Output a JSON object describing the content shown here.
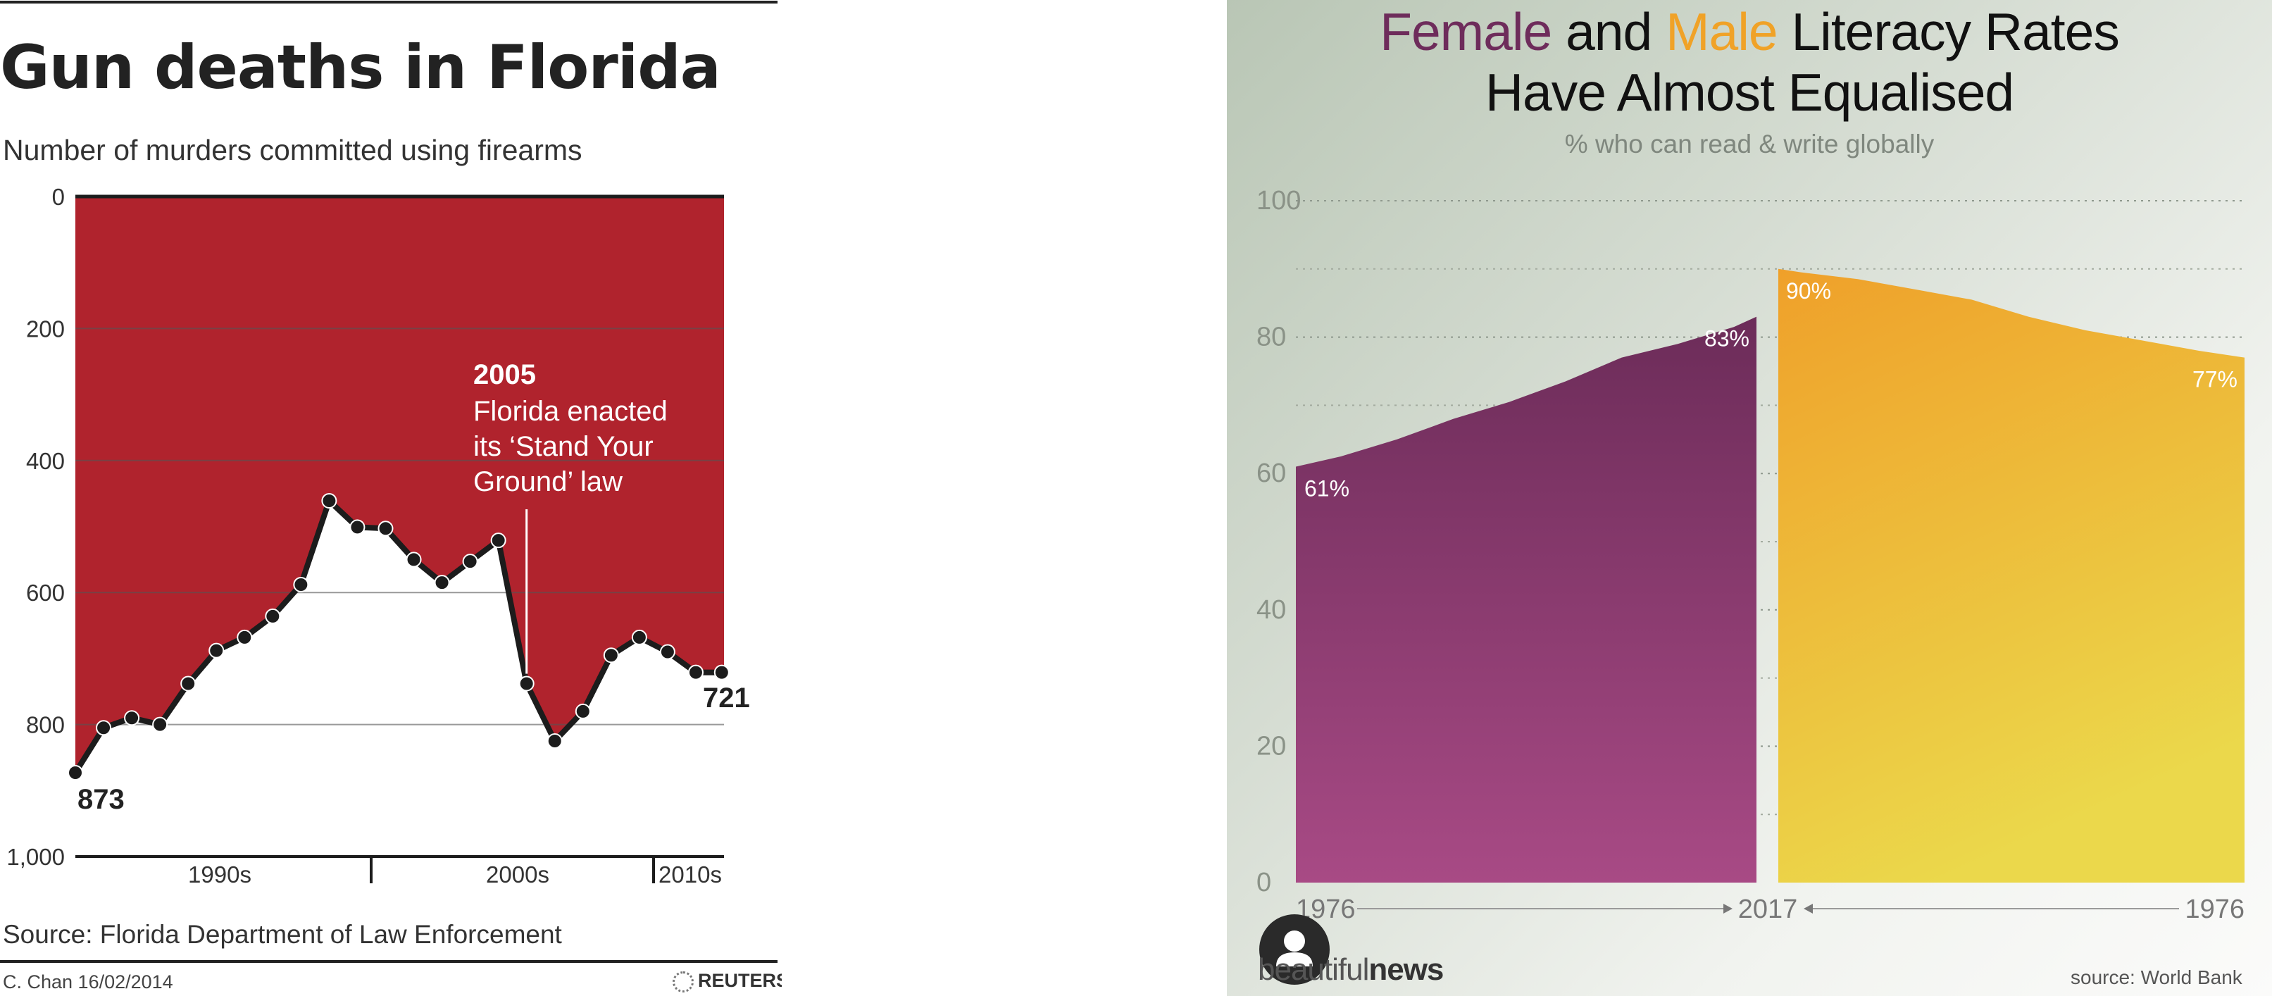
{
  "left_chart": {
    "title": "Gun deaths in Florida",
    "subtitle": "Number of murders committed using firearms",
    "source": "Source: Florida Department of Law Enforcement",
    "credit": "C. Chan  16/02/2014",
    "logo_text": "REUTERS",
    "annotation": {
      "year": "2005",
      "lines": [
        "Florida enacted",
        "its ‘Stand Your",
        "Ground’ law"
      ]
    },
    "start_label": "873",
    "end_label": "721",
    "colors": {
      "fill": "#b0232d",
      "line": "#1c1c1c",
      "text": "#222222"
    }
  },
  "right_chart": {
    "title_parts": {
      "female": "Female",
      "and": " and ",
      "male": "Male",
      "rest": " Literacy Rates",
      "line2": "Have Almost Equalised"
    },
    "subtitle": "% who can read & write globally",
    "brand": {
      "light": "beautiful",
      "bold": "news"
    },
    "source": "source: World Bank",
    "female_start_label": "61%",
    "female_end_label": "83%",
    "male_end_label": "90%",
    "male_start_label": "77%",
    "x_left_start": "1976",
    "x_middle": "2017",
    "x_right_start": "1976",
    "colors": {
      "female_top": "#6c2c59",
      "female_bottom": "#a84a85",
      "male_top": "#efa02a",
      "male_bottom": "#ebd84b"
    }
  },
  "chart_data": [
    {
      "type": "line",
      "title": "Gun deaths in Florida",
      "subtitle": "Number of murders committed using firearms",
      "y_axis_inverted": true,
      "ylim": [
        0,
        1000
      ],
      "y_ticks": [
        0,
        200,
        400,
        600,
        800,
        1000
      ],
      "y_tick_labels": [
        "0",
        "200",
        "400",
        "600",
        "800",
        "1,000"
      ],
      "x": [
        1989,
        1990,
        1991,
        1992,
        1993,
        1994,
        1995,
        1996,
        1997,
        1998,
        1999,
        2000,
        2001,
        2002,
        2003,
        2004,
        2005,
        2006,
        2007,
        2008,
        2009,
        2010,
        2011,
        2012
      ],
      "x_ticks": [
        "1990s",
        "2000s",
        "2010s"
      ],
      "series": [
        {
          "values": [
            873,
            805,
            790,
            800,
            738,
            688,
            668,
            636,
            588,
            461,
            501,
            503,
            550,
            585,
            553,
            521,
            738,
            825,
            780,
            695,
            668,
            690,
            721,
            721
          ]
        }
      ],
      "grid": true,
      "annotations": [
        {
          "x": 2005,
          "text": "2005 Florida enacted its ‘Stand Your Ground’ law"
        }
      ],
      "data_labels": [
        "873",
        "721"
      ],
      "source": "Source: Florida Department of Law Enforcement"
    },
    {
      "type": "area",
      "title": "Female and Male Literacy Rates Have Almost Equalised",
      "subtitle": "% who can read & write globally",
      "ylim": [
        0,
        100
      ],
      "y_ticks": [
        0,
        20,
        40,
        60,
        80,
        100
      ],
      "grid": true,
      "series": [
        {
          "name": "Female",
          "x": [
            1976,
            1980,
            1985,
            1990,
            1995,
            2000,
            2005,
            2010,
            2015,
            2017
          ],
          "values": [
            61,
            62.5,
            65,
            68,
            70.5,
            73.5,
            77,
            79,
            81.5,
            83
          ]
        },
        {
          "name": "Male",
          "x": [
            1976,
            1980,
            1985,
            1990,
            1995,
            2000,
            2005,
            2010,
            2015,
            2017
          ],
          "values": [
            77,
            78,
            79.5,
            81,
            83,
            85.5,
            87,
            88.5,
            89.5,
            90
          ]
        }
      ],
      "x_labels": [
        "1976",
        "2017",
        "1976"
      ],
      "data_labels": [
        "61%",
        "83%",
        "90%",
        "77%"
      ],
      "source": "source: World Bank"
    }
  ]
}
